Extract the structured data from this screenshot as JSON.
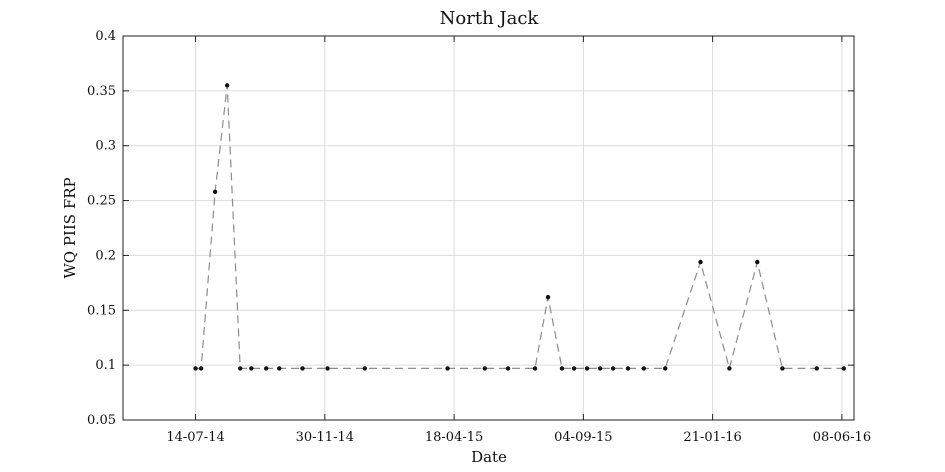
{
  "chart_data": {
    "type": "line",
    "title": "North Jack",
    "xlabel": "Date",
    "ylabel": "WQ PIIS FRP",
    "x_ticks": [
      "14-07-14",
      "30-11-14",
      "18-04-15",
      "04-09-15",
      "21-01-16",
      "08-06-16"
    ],
    "ylim": [
      0.05,
      0.4
    ],
    "y_ticks": [
      0.05,
      0.1,
      0.15,
      0.2,
      0.25,
      0.3,
      0.35,
      0.4
    ],
    "y_tick_labels": [
      "0.05",
      "0.1",
      "0.15",
      "0.2",
      "0.25",
      "0.3",
      "0.35",
      "0.4"
    ],
    "grid": true,
    "line_style": "dashed",
    "colors": {
      "line": "#8c8c8c",
      "marker": "#111111",
      "grid": "#dcdcdc"
    },
    "series": [
      {
        "x": [
          "2014-07-14",
          "2014-07-20",
          "2014-08-04",
          "2014-08-17",
          "2014-08-31",
          "2014-09-12",
          "2014-09-28",
          "2014-10-12",
          "2014-11-06",
          "2014-12-03",
          "2015-01-12",
          "2015-04-11",
          "2015-05-21",
          "2015-06-15",
          "2015-07-14",
          "2015-07-28",
          "2015-08-12",
          "2015-08-25",
          "2015-09-08",
          "2015-09-22",
          "2015-10-06",
          "2015-10-22",
          "2015-11-08",
          "2015-12-01",
          "2016-01-08",
          "2016-02-08",
          "2016-03-09",
          "2016-04-05",
          "2016-05-12",
          "2016-06-10"
        ],
        "y": [
          0.097,
          0.097,
          0.258,
          0.355,
          0.097,
          0.097,
          0.097,
          0.097,
          0.097,
          0.097,
          0.097,
          0.097,
          0.097,
          0.097,
          0.097,
          0.162,
          0.097,
          0.097,
          0.097,
          0.097,
          0.097,
          0.097,
          0.097,
          0.097,
          0.194,
          0.097,
          0.194,
          0.097,
          0.097,
          0.097
        ]
      }
    ]
  }
}
